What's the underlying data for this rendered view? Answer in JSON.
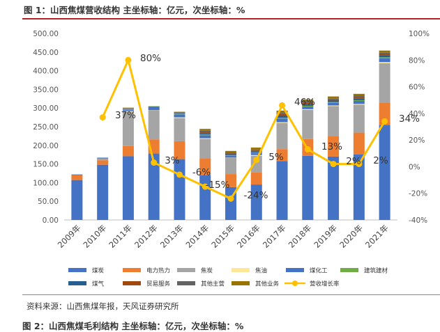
{
  "header": {
    "title": "图 1：山西焦煤营收结构 主坐标轴：亿元，次坐标轴：%"
  },
  "footer": {
    "source": "资料来源：山西焦煤年报，天风证券研究所",
    "next_title": "图 2：山西焦煤毛利结构 主坐标轴：亿元，次坐标轴：%"
  },
  "chart_data": {
    "type": "bar",
    "stacked": true,
    "categories": [
      "2009年",
      "2010年",
      "2011年",
      "2012年",
      "2013年",
      "2014年",
      "2015年",
      "2016年",
      "2017年",
      "2018年",
      "2019年",
      "2020年",
      "2021年"
    ],
    "y_left": {
      "min": 0,
      "max": 500,
      "step": 50,
      "tick_labels": [
        "0.00",
        "50.00",
        "100.00",
        "150.00",
        "200.00",
        "250.00",
        "300.00",
        "350.00",
        "400.00",
        "450.00",
        "500.00"
      ]
    },
    "y_right": {
      "min": -40,
      "max": 100,
      "step": 20,
      "tick_labels": [
        "-40%",
        "-20%",
        "0%",
        "20%",
        "40%",
        "60%",
        "80%",
        "100%"
      ]
    },
    "grid": false,
    "legend_position": "bottom",
    "series": [
      {
        "name": "煤炭",
        "color": "#4472C4",
        "values": [
          107,
          148,
          171,
          178,
          163,
          120,
          88,
          95,
          158,
          172,
          170,
          176,
          255
        ]
      },
      {
        "name": "电力热力",
        "color": "#ED7D31",
        "values": [
          13,
          12,
          27,
          38,
          48,
          45,
          35,
          32,
          32,
          45,
          55,
          58,
          60
        ]
      },
      {
        "name": "焦炭",
        "color": "#A5A5A5",
        "values": [
          0,
          5,
          92,
          77,
          62,
          52,
          43,
          45,
          70,
          78,
          80,
          75,
          105
        ]
      },
      {
        "name": "焦油",
        "color": "#FFE699",
        "values": [
          0,
          0,
          2,
          1,
          2,
          2,
          1,
          2,
          2,
          2,
          2,
          2,
          3
        ]
      },
      {
        "name": "煤化工",
        "color": "#4472C4",
        "values": [
          2,
          2,
          3,
          10,
          8,
          8,
          5,
          5,
          10,
          7,
          7,
          8,
          10
        ]
      },
      {
        "name": "建筑建材",
        "color": "#70AD47",
        "values": [
          0,
          0,
          2,
          1,
          2,
          2,
          1,
          2,
          2,
          2,
          2,
          2,
          3
        ]
      },
      {
        "name": "煤气",
        "color": "#255E91",
        "values": [
          0,
          0,
          1,
          0,
          2,
          3,
          2,
          2,
          5,
          4,
          4,
          5,
          5
        ]
      },
      {
        "name": "贸易服务",
        "color": "#9E480E",
        "values": [
          0,
          0,
          1,
          0,
          1,
          3,
          3,
          3,
          5,
          5,
          3,
          4,
          4
        ]
      },
      {
        "name": "其他主营",
        "color": "#636363",
        "values": [
          0,
          0,
          1,
          0,
          1,
          4,
          3,
          3,
          4,
          3,
          3,
          3,
          3
        ]
      },
      {
        "name": "其他业务",
        "color": "#997300",
        "values": [
          0,
          0,
          1,
          0,
          1,
          5,
          4,
          5,
          5,
          5,
          5,
          5,
          6
        ]
      }
    ],
    "line_series": {
      "name": "营收增长率",
      "color": "#FFC000",
      "axis": "right",
      "categories": [
        "2010年",
        "2011年",
        "2012年",
        "2013年",
        "2014年",
        "2015年",
        "2016年",
        "2017年",
        "2018年",
        "2019年",
        "2020年",
        "2021年"
      ],
      "values": [
        37,
        80,
        3,
        -6,
        -15,
        -24,
        5,
        46,
        13,
        2,
        2,
        34
      ],
      "labels": [
        "37%",
        "80%",
        "3%",
        "-6%",
        "-15%",
        "-24%",
        "5%",
        "46%",
        "13%",
        "2%",
        "2%",
        "34%"
      ]
    }
  }
}
